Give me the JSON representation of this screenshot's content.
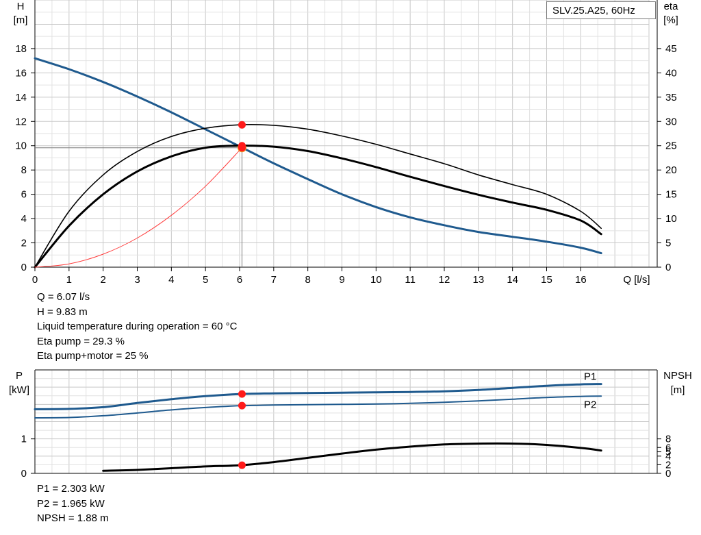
{
  "chart_data": [
    {
      "type": "line",
      "title": "SLV.25.A25, 60Hz",
      "xlabel": "Q [l/s]",
      "ylabel": "H\n[m]",
      "y2label": "eta\n[%]",
      "xlim": [
        0,
        18
      ],
      "ylim": [
        0,
        22
      ],
      "y2lim": [
        0,
        55
      ],
      "x_ticks": [
        0,
        1,
        2,
        3,
        4,
        5,
        6,
        7,
        8,
        9,
        10,
        11,
        12,
        13,
        14,
        15,
        16
      ],
      "y_ticks": [
        0,
        2,
        4,
        6,
        8,
        10,
        12,
        14,
        16,
        18
      ],
      "y2_ticks": [
        0,
        5,
        10,
        15,
        20,
        25,
        30,
        35,
        40,
        45
      ],
      "grid": true,
      "series": [
        {
          "id": "H",
          "axis": "y",
          "color": "#1f5a8e",
          "x": [
            0,
            1,
            2,
            3,
            4,
            5,
            6,
            7,
            8,
            9,
            10,
            11,
            12,
            13,
            14,
            15,
            16,
            16.6
          ],
          "y": [
            17.2,
            16.3,
            15.25,
            14.05,
            12.75,
            11.35,
            9.95,
            8.55,
            7.25,
            6.0,
            4.95,
            4.1,
            3.45,
            2.9,
            2.5,
            2.1,
            1.6,
            1.15
          ]
        },
        {
          "id": "eta pump",
          "axis": "y2",
          "color": "#000000",
          "x": [
            0,
            1,
            2,
            3,
            4,
            5,
            6,
            7,
            8,
            9,
            10,
            11,
            12,
            13,
            14,
            15,
            16,
            16.6
          ],
          "y": [
            0,
            11.5,
            19.0,
            23.8,
            26.9,
            28.6,
            29.3,
            29.2,
            28.4,
            27.0,
            25.3,
            23.3,
            21.3,
            19.0,
            17.0,
            15.0,
            11.5,
            8.0
          ]
        },
        {
          "id": "eta pump+motor",
          "axis": "y2",
          "color": "#000000",
          "x": [
            0,
            1,
            2,
            3,
            4,
            5,
            6,
            7,
            8,
            9,
            10,
            11,
            12,
            13,
            14,
            15,
            16,
            16.6
          ],
          "y": [
            0,
            8.5,
            15.0,
            19.7,
            22.8,
            24.6,
            25.0,
            24.8,
            23.9,
            22.4,
            20.6,
            18.6,
            16.7,
            14.9,
            13.3,
            11.8,
            9.6,
            6.8
          ]
        },
        {
          "id": "system curve",
          "axis": "y",
          "color": "#ff3b3b",
          "x": [
            0,
            1,
            2,
            3,
            4,
            5,
            6.07
          ],
          "y": [
            0,
            0.27,
            1.07,
            2.4,
            4.27,
            6.67,
            9.83
          ]
        }
      ],
      "points": [
        {
          "axis": "y",
          "x": 6.07,
          "y": 9.83
        },
        {
          "axis": "y2",
          "x": 6.07,
          "y": 29.3
        },
        {
          "axis": "y2",
          "x": 6.07,
          "y": 25
        }
      ],
      "operating_point": {
        "x": 6.07,
        "y": 9.83
      }
    },
    {
      "type": "line",
      "xlabel": "",
      "ylabel": "P\n[kW]",
      "y2label": "NPSH\n[m]",
      "xlim": [
        0,
        18
      ],
      "ylim": [
        0,
        3
      ],
      "y2lim": [
        0,
        24
      ],
      "y_ticks": [
        0,
        1
      ],
      "y2_ticks": [
        0,
        2,
        4,
        5,
        6,
        8
      ],
      "grid": true,
      "series": [
        {
          "id": "P1",
          "name": "P1",
          "axis": "y",
          "color": "#1f5a8e",
          "x": [
            0,
            1,
            2,
            3,
            4,
            5,
            6,
            7,
            8,
            9,
            10,
            11,
            12,
            13,
            14,
            15,
            16,
            16.6
          ],
          "y": [
            1.86,
            1.87,
            1.92,
            2.04,
            2.15,
            2.24,
            2.3,
            2.32,
            2.33,
            2.34,
            2.35,
            2.36,
            2.38,
            2.42,
            2.48,
            2.54,
            2.58,
            2.59
          ]
        },
        {
          "id": "P2",
          "name": "P2",
          "axis": "y",
          "color": "#1f5a8e",
          "x": [
            0,
            1,
            2,
            3,
            4,
            5,
            6,
            7,
            8,
            9,
            10,
            11,
            12,
            13,
            14,
            15,
            16,
            16.6
          ],
          "y": [
            1.61,
            1.62,
            1.67,
            1.75,
            1.84,
            1.91,
            1.96,
            1.98,
            1.99,
            2.0,
            2.01,
            2.03,
            2.06,
            2.1,
            2.15,
            2.2,
            2.23,
            2.24
          ]
        },
        {
          "id": "NPSH",
          "axis": "y2",
          "color": "#000000",
          "x": [
            2,
            3,
            4,
            5,
            6,
            7,
            8,
            9,
            10,
            11,
            12,
            13,
            14,
            15,
            16,
            16.6
          ],
          "y": [
            0.6,
            0.8,
            1.2,
            1.6,
            1.88,
            2.6,
            3.6,
            4.6,
            5.5,
            6.2,
            6.7,
            6.9,
            6.9,
            6.6,
            5.9,
            5.3
          ]
        }
      ],
      "points": [
        {
          "axis": "y",
          "x": 6.07,
          "y": 2.303
        },
        {
          "axis": "y",
          "x": 6.07,
          "y": 1.965
        },
        {
          "axis": "y2",
          "x": 6.07,
          "y": 1.88
        }
      ]
    }
  ],
  "info_top": [
    "Q = 6.07 l/s",
    "H = 9.83 m",
    "Liquid temperature during operation = 60 °C",
    "Eta pump = 29.3 %",
    "Eta pump+motor = 25 %"
  ],
  "info_bottom": [
    "P1 = 2.303 kW",
    "P2 = 1.965 kW",
    "NPSH = 1.88 m"
  ]
}
